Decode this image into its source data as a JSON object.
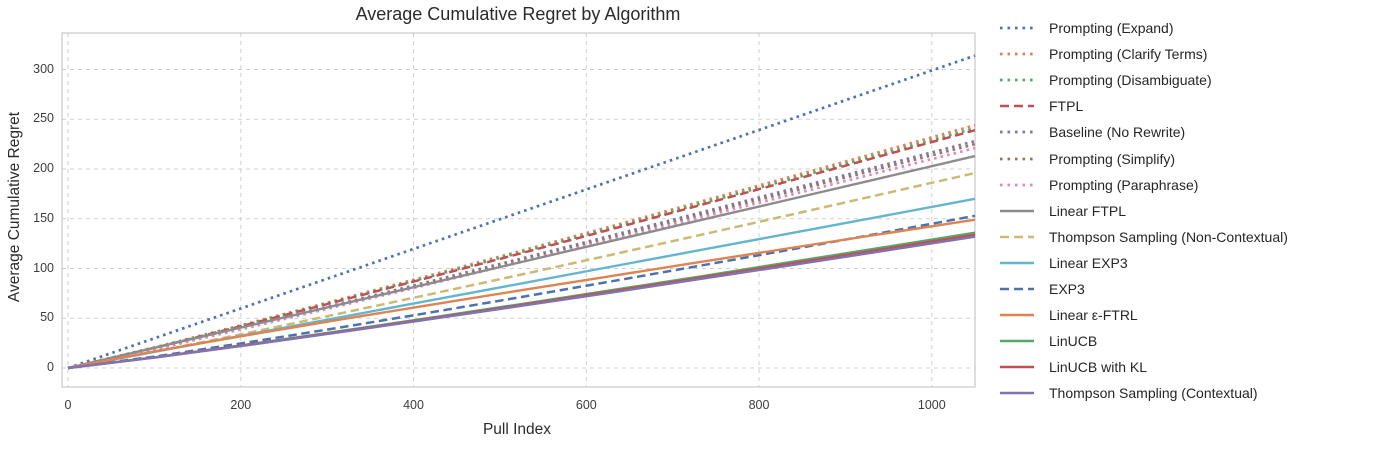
{
  "title": "Average Cumulative Regret by Algorithm",
  "chart_data": {
    "type": "line",
    "title": "Average Cumulative Regret by Algorithm",
    "xlabel": "Pull Index",
    "ylabel": "Average Cumulative Regret",
    "x_ticks": [
      0,
      200,
      400,
      600,
      800,
      1000
    ],
    "y_ticks": [
      0,
      50,
      100,
      150,
      200,
      250,
      300
    ],
    "xlim": [
      0,
      1050
    ],
    "ylim": [
      -18,
      336
    ],
    "grid": true,
    "grid_style": "dashed",
    "grid_color": "#cfcfcf",
    "spine_color": "#c9c9c9",
    "legend_position": "right-outside",
    "x": [
      0,
      105,
      210,
      315,
      420,
      525,
      630,
      735,
      840,
      945,
      1050
    ],
    "series": [
      {
        "id": "prompting-expand",
        "name": "Prompting (Expand)",
        "color": "#4C72B0",
        "style": "dotted",
        "values": [
          0,
          31.4,
          62.8,
          94.2,
          125.6,
          157.0,
          188.4,
          219.8,
          251.2,
          282.6,
          314
        ]
      },
      {
        "id": "prompting-clarify-terms",
        "name": "Prompting (Clarify Terms)",
        "color": "#DD8452",
        "style": "dotted",
        "values": [
          0,
          21.7,
          45.1,
          69.0,
          93.3,
          117.9,
          142.6,
          167.8,
          193.0,
          218.4,
          244
        ]
      },
      {
        "id": "prompting-disambiguate",
        "name": "Prompting (Disambiguate)",
        "color": "#55A868",
        "style": "dotted",
        "values": [
          0,
          21.5,
          44.5,
          68.2,
          92.2,
          116.4,
          140.9,
          165.7,
          190.7,
          215.7,
          241
        ]
      },
      {
        "id": "ftpl",
        "name": "FTPL",
        "color": "#C44E52",
        "style": "dashed",
        "values": [
          0,
          21.3,
          44.1,
          67.6,
          91.4,
          115.4,
          139.7,
          164.4,
          189.1,
          214.0,
          239
        ]
      },
      {
        "id": "baseline-no-rewrite",
        "name": "Baseline (No Rewrite)",
        "color": "#8172B3",
        "style": "dotted",
        "values": [
          0,
          20.3,
          42.1,
          64.5,
          87.2,
          110.1,
          133.3,
          156.8,
          180.4,
          204.1,
          228
        ]
      },
      {
        "id": "prompting-simplify",
        "name": "Prompting (Simplify)",
        "color": "#937860",
        "style": "dotted",
        "values": [
          0,
          20.0,
          41.6,
          63.6,
          86.0,
          108.7,
          131.5,
          154.7,
          178.0,
          201.4,
          225
        ]
      },
      {
        "id": "prompting-paraphrase",
        "name": "Prompting (Paraphrase)",
        "color": "#DA8BC3",
        "style": "dotted",
        "values": [
          0,
          19.7,
          40.8,
          62.5,
          84.5,
          106.7,
          129.2,
          152.0,
          174.8,
          197.8,
          221
        ]
      },
      {
        "id": "linear-ftpl",
        "name": "Linear FTPL",
        "color": "#8C8C8C",
        "style": "solid",
        "values": [
          0,
          21.3,
          42.6,
          63.9,
          85.2,
          106.5,
          127.8,
          149.1,
          170.4,
          191.7,
          213
        ]
      },
      {
        "id": "thompson-sampling-non-contextual",
        "name": "Thompson Sampling (Non-Contextual)",
        "color": "#CCB974",
        "style": "dashed",
        "values": [
          0,
          17.1,
          35.6,
          54.8,
          74.3,
          94.0,
          114.0,
          134.3,
          154.7,
          175.3,
          196
        ]
      },
      {
        "id": "linear-exp3",
        "name": "Linear EXP3",
        "color": "#64B5CD",
        "style": "solid",
        "values": [
          0,
          17.0,
          34.0,
          51.0,
          68.0,
          85.0,
          102.0,
          119.0,
          136.0,
          153.0,
          170
        ]
      },
      {
        "id": "exp3",
        "name": "EXP3",
        "color": "#4C72B0",
        "style": "dashed",
        "values": [
          0,
          12.1,
          26.0,
          40.7,
          55.9,
          71.4,
          87.2,
          103.3,
          119.6,
          136.2,
          153
        ]
      },
      {
        "id": "linear-epsilon-ftrl",
        "name": "Linear ε-FTRL",
        "color": "#DD8452",
        "style": "solid",
        "values": [
          0,
          17.5,
          33.4,
          48.6,
          63.5,
          78.2,
          92.6,
          106.9,
          121.1,
          135.1,
          149
        ]
      },
      {
        "id": "linucb",
        "name": "LinUCB",
        "color": "#55A868",
        "style": "solid",
        "values": [
          0,
          11.3,
          23.9,
          37.1,
          50.6,
          64.3,
          78.3,
          92.5,
          106.9,
          121.4,
          136
        ]
      },
      {
        "id": "linucb-with-kl",
        "name": "LinUCB with KL",
        "color": "#C44E52",
        "style": "solid",
        "values": [
          0,
          11.2,
          23.6,
          36.5,
          49.8,
          63.4,
          77.2,
          91.2,
          105.3,
          119.6,
          134
        ]
      },
      {
        "id": "thompson-sampling-contextual",
        "name": "Thompson Sampling (Contextual)",
        "color": "#8172B3",
        "style": "solid",
        "values": [
          0,
          11.0,
          23.2,
          36.0,
          49.1,
          62.5,
          76.0,
          89.8,
          103.7,
          117.8,
          132
        ]
      }
    ]
  }
}
